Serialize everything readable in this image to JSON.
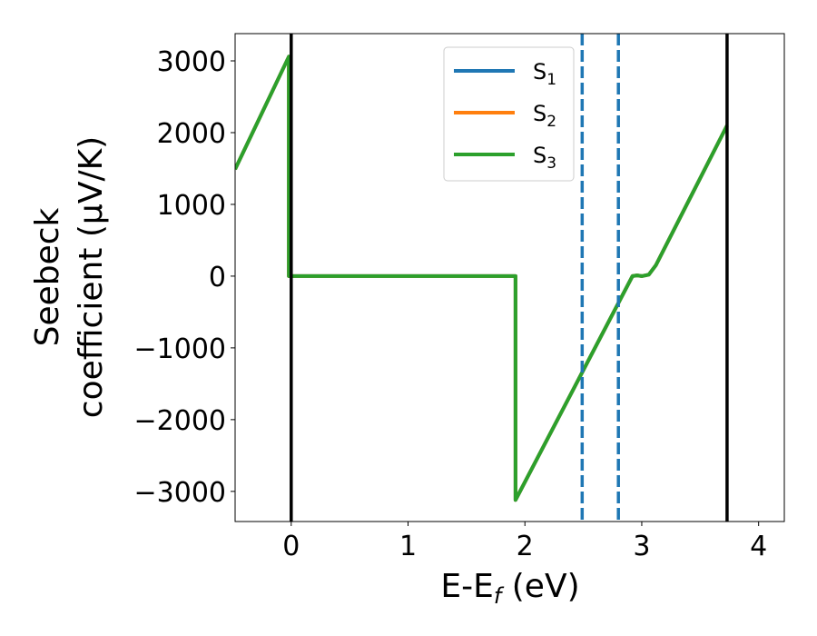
{
  "chart_data": {
    "type": "line",
    "xlabel_main": "E-E",
    "xlabel_sub": "f",
    "xlabel_unit": " (eV)",
    "ylabel_line1": "Seebeck",
    "ylabel_line2": "coefficient  (μV/K)",
    "xlim": [
      -0.48,
      4.22
    ],
    "ylim": [
      -3420,
      3380
    ],
    "xticks": [
      {
        "value": 0,
        "label": "0"
      },
      {
        "value": 1,
        "label": "1"
      },
      {
        "value": 2,
        "label": "2"
      },
      {
        "value": 3,
        "label": "3"
      },
      {
        "value": 4,
        "label": "4"
      }
    ],
    "yticks": [
      {
        "value": 3000,
        "label": "3000"
      },
      {
        "value": 2000,
        "label": "2000"
      },
      {
        "value": 1000,
        "label": "1000"
      },
      {
        "value": 0,
        "label": "0"
      },
      {
        "value": -1000,
        "label": "−1000"
      },
      {
        "value": -2000,
        "label": "−2000"
      },
      {
        "value": -3000,
        "label": "−3000"
      }
    ],
    "legend_position": "top-right",
    "series": [
      {
        "name": "S",
        "sub": "1",
        "color": "#1f77b4",
        "x": [
          -0.48,
          -0.02,
          -0.02,
          1.92,
          1.92,
          2.92,
          2.96,
          3.0,
          3.06,
          3.12,
          3.73
        ],
        "y": [
          1490,
          3060,
          0,
          0,
          -3120,
          0,
          10,
          0,
          20,
          150,
          2100
        ]
      },
      {
        "name": "S",
        "sub": "2",
        "color": "#ff7f0e",
        "x": [
          -0.48,
          -0.02,
          -0.02,
          1.92,
          1.92,
          2.92,
          2.96,
          3.0,
          3.06,
          3.12,
          3.73
        ],
        "y": [
          1490,
          3060,
          0,
          0,
          -3120,
          0,
          10,
          0,
          20,
          150,
          2100
        ]
      },
      {
        "name": "S",
        "sub": "3",
        "color": "#2ca02c",
        "x": [
          -0.48,
          -0.02,
          -0.02,
          1.92,
          1.92,
          2.92,
          2.96,
          3.0,
          3.06,
          3.12,
          3.73
        ],
        "y": [
          1490,
          3060,
          0,
          0,
          -3120,
          0,
          10,
          0,
          20,
          150,
          2100
        ]
      }
    ],
    "vertical_lines": [
      {
        "x": 0.0,
        "style": "solid",
        "color": "#000000"
      },
      {
        "x": 3.73,
        "style": "solid",
        "color": "#000000"
      },
      {
        "x": 2.49,
        "style": "dashed",
        "color": "#1f77b4"
      },
      {
        "x": 2.8,
        "style": "dashed",
        "color": "#1f77b4"
      }
    ]
  }
}
